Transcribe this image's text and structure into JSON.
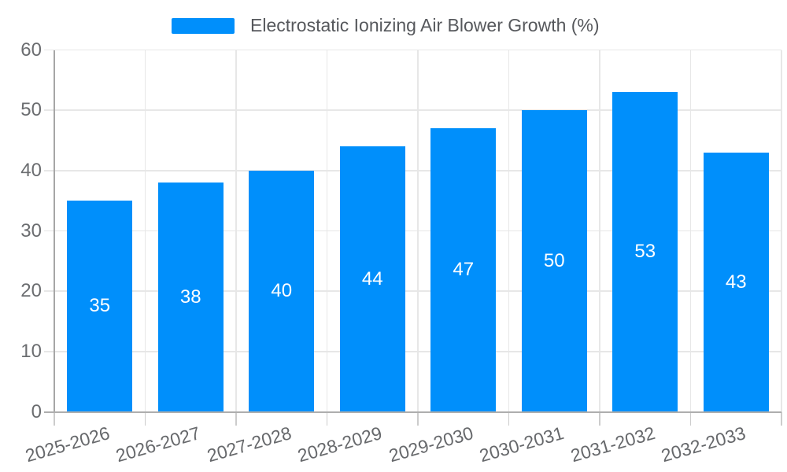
{
  "colors": {
    "bar": "#008FFB",
    "grid": "#e7e7e7",
    "axis_spine": "#a6a6a6",
    "tick_text": "#6b6d70",
    "legend_text": "#56585c",
    "value_label_text": "#ffffff",
    "background": "#ffffff"
  },
  "chart_data": {
    "type": "bar",
    "title": "",
    "legend": {
      "position": "top",
      "label": "Electrostatic Ionizing Air Blower Growth (%)"
    },
    "categories": [
      "2025-2026",
      "2026-2027",
      "2027-2028",
      "2028-2029",
      "2029-2030",
      "2030-2031",
      "2031-2032",
      "2032-2033"
    ],
    "series": [
      {
        "name": "Electrostatic Ionizing Air Blower Growth (%)",
        "values": [
          35,
          38,
          40,
          44,
          47,
          50,
          53,
          43
        ]
      }
    ],
    "value_labels": [
      35,
      38,
      40,
      44,
      47,
      50,
      53,
      43
    ],
    "xlabel": "",
    "ylabel": "",
    "ylim": [
      0,
      60
    ],
    "yticks": [
      0,
      10,
      20,
      30,
      40,
      50,
      60
    ],
    "grid": "on",
    "legend_position": "top-center"
  }
}
